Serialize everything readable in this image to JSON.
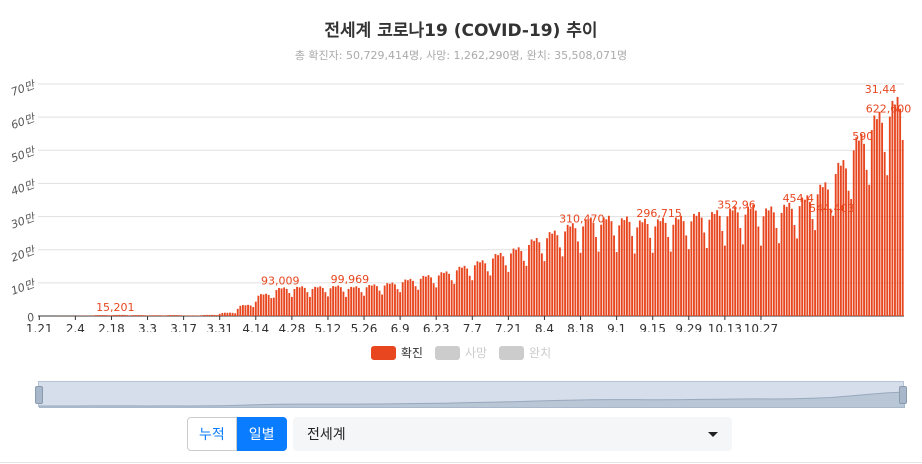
{
  "title": "전세계 코로나19 (COVID-19) 추이",
  "subtitle": "총 확진자: 50,729,414명, 사망: 1,262,290명, 완치: 35,508,071명",
  "colors": {
    "confirmed": "#e8461f",
    "disabled": "#cccccc",
    "accent": "#0a7cff"
  },
  "legend": [
    {
      "label": "확진",
      "active": true
    },
    {
      "label": "사망",
      "active": false
    },
    {
      "label": "완치",
      "active": false
    }
  ],
  "controls": {
    "cumulative_label": "누적",
    "daily_label": "일별",
    "active": "일별"
  },
  "region_select": {
    "value": "전세계"
  },
  "chart_data": {
    "type": "bar",
    "title": "전세계 코로나19 (COVID-19) 추이",
    "x_ticks": [
      "1.21",
      "2.4",
      "2.18",
      "3.3",
      "3.17",
      "3.31",
      "4.14",
      "4.28",
      "5.12",
      "5.26",
      "6.9",
      "6.23",
      "7.7",
      "7.21",
      "8.4",
      "8.18",
      "9.1",
      "9.15",
      "9.29",
      "10.13",
      "10.27"
    ],
    "y_ticks": [
      "0",
      "10만",
      "20만",
      "30만",
      "40만",
      "50만",
      "60만",
      "70만"
    ],
    "ylim": [
      0,
      700000
    ],
    "x_range": [
      "1.21",
      "11.10"
    ],
    "series": [
      {
        "name": "확진",
        "weekly_daily_average": [
          100,
          300,
          700,
          2500,
          3000,
          2500,
          2000,
          2500,
          1500,
          3000,
          9000,
          30000,
          60000,
          77000,
          80000,
          80000,
          82000,
          80000,
          85000,
          90000,
          100000,
          110000,
          120000,
          135000,
          150000,
          170000,
          185000,
          210000,
          230000,
          250000,
          265000,
          270000,
          268000,
          262000,
          265000,
          270000,
          280000,
          285000,
          295000,
          300000,
          295000,
          305000,
          325000,
          360000,
          420000,
          490000,
          550000,
          590000
        ],
        "labeled_peaks": [
          {
            "label": "15,201"
          },
          {
            "label": "93,009"
          },
          {
            "label": "99,969"
          },
          {
            "label": "310,470"
          },
          {
            "label": "296,715"
          },
          {
            "label": "352,96"
          },
          {
            "label": "454,4"
          },
          {
            "label": "544,403"
          },
          {
            "label": "590"
          },
          {
            "label": "622,600"
          },
          {
            "label": "31,44"
          }
        ]
      },
      {
        "name": "사망"
      },
      {
        "name": "완치"
      }
    ],
    "legend_position": "bottom",
    "grid": true
  }
}
